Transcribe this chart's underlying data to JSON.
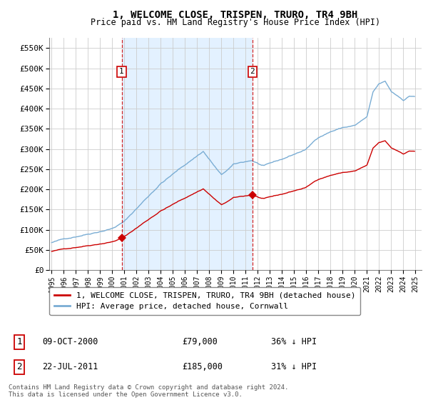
{
  "title": "1, WELCOME CLOSE, TRISPEN, TRURO, TR4 9BH",
  "subtitle": "Price paid vs. HM Land Registry's House Price Index (HPI)",
  "xlim_left": 1994.8,
  "xlim_right": 2025.5,
  "ylim_bottom": 0,
  "ylim_top": 575000,
  "yticks": [
    0,
    50000,
    100000,
    150000,
    200000,
    250000,
    300000,
    350000,
    400000,
    450000,
    500000,
    550000
  ],
  "ytick_labels": [
    "£0",
    "£50K",
    "£100K",
    "£150K",
    "£200K",
    "£250K",
    "£300K",
    "£350K",
    "£400K",
    "£450K",
    "£500K",
    "£550K"
  ],
  "sale1_x": 2000.77,
  "sale1_y": 79000,
  "sale1_label": "1",
  "sale2_x": 2011.55,
  "sale2_y": 185000,
  "sale2_label": "2",
  "vline1_x": 2000.77,
  "vline2_x": 2011.55,
  "property_color": "#cc0000",
  "hpi_color": "#7aadd4",
  "shade_color": "#ddeeff",
  "legend_property": "1, WELCOME CLOSE, TRISPEN, TRURO, TR4 9BH (detached house)",
  "legend_hpi": "HPI: Average price, detached house, Cornwall",
  "table_row1_num": "1",
  "table_row1_date": "09-OCT-2000",
  "table_row1_price": "£79,000",
  "table_row1_hpi": "36% ↓ HPI",
  "table_row2_num": "2",
  "table_row2_date": "22-JUL-2011",
  "table_row2_price": "£185,000",
  "table_row2_hpi": "31% ↓ HPI",
  "footer": "Contains HM Land Registry data © Crown copyright and database right 2024.\nThis data is licensed under the Open Government Licence v3.0.",
  "bg_color": "#ffffff",
  "grid_color": "#cccccc"
}
